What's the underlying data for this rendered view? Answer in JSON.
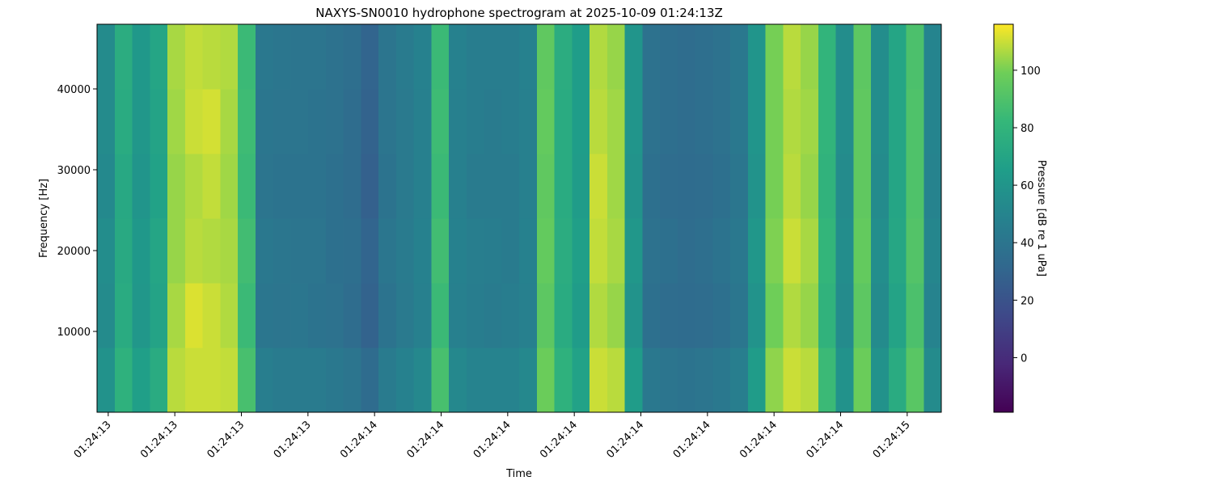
{
  "chart_data": {
    "type": "heatmap",
    "title": "NAXYS-SN0010 hydrophone spectrogram at 2025-10-09 01:24:13Z",
    "x_label": "Time",
    "y_label": "Frequency [Hz]",
    "colorbar_label": "Pressure [dB re 1 uPa]",
    "colormap": "viridis",
    "xlim": [
      12.979,
      14.564
    ],
    "xticks": [
      {
        "value": 13.0,
        "label": "01:24:13"
      },
      {
        "value": 13.125,
        "label": "01:24:13"
      },
      {
        "value": 13.25,
        "label": "01:24:13"
      },
      {
        "value": 13.375,
        "label": "01:24:13"
      },
      {
        "value": 13.5,
        "label": "01:24:14"
      },
      {
        "value": 13.625,
        "label": "01:24:14"
      },
      {
        "value": 13.75,
        "label": "01:24:14"
      },
      {
        "value": 13.875,
        "label": "01:24:14"
      },
      {
        "value": 14.0,
        "label": "01:24:14"
      },
      {
        "value": 14.125,
        "label": "01:24:14"
      },
      {
        "value": 14.25,
        "label": "01:24:14"
      },
      {
        "value": 14.375,
        "label": "01:24:14"
      },
      {
        "value": 14.5,
        "label": "01:24:15"
      }
    ],
    "ylim": [
      0,
      48000
    ],
    "yticks": [
      10000,
      20000,
      30000,
      40000
    ],
    "clim": [
      -19,
      116
    ],
    "cticks": [
      0,
      20,
      40,
      60,
      80,
      100
    ],
    "z": [
      [
        58,
        78,
        66,
        74,
        108,
        110,
        110,
        109,
        88,
        46,
        44,
        44,
        44,
        42,
        40,
        34,
        44,
        48,
        52,
        88,
        52,
        49,
        49,
        49,
        52,
        98,
        78,
        68,
        110,
        108,
        64,
        42,
        40,
        39,
        40,
        42,
        46,
        64,
        103,
        110,
        108,
        84,
        58,
        98,
        58,
        74,
        93,
        54
      ],
      [
        54,
        74,
        61,
        69,
        106,
        112,
        110,
        107,
        84,
        41,
        40,
        41,
        39,
        38,
        35,
        29,
        39,
        43,
        47,
        84,
        47,
        45,
        44,
        45,
        47,
        94,
        74,
        64,
        107,
        104,
        59,
        37,
        35,
        34,
        35,
        37,
        41,
        59,
        99,
        107,
        104,
        79,
        54,
        94,
        54,
        69,
        89,
        49
      ],
      [
        55,
        73,
        62,
        70,
        104,
        108,
        107,
        106,
        86,
        42,
        41,
        40,
        40,
        37,
        36,
        30,
        41,
        44,
        48,
        86,
        48,
        46,
        45,
        44,
        48,
        96,
        75,
        66,
        109,
        106,
        61,
        38,
        37,
        35,
        36,
        39,
        42,
        61,
        101,
        110,
        106,
        81,
        55,
        96,
        56,
        71,
        91,
        51
      ],
      [
        53,
        72,
        60,
        68,
        104,
        107,
        109,
        105,
        84,
        40,
        39,
        39,
        39,
        37,
        35,
        28,
        39,
        43,
        47,
        84,
        47,
        44,
        44,
        44,
        47,
        95,
        74,
        64,
        110,
        105,
        59,
        37,
        35,
        34,
        35,
        37,
        41,
        59,
        100,
        108,
        104,
        79,
        54,
        95,
        54,
        70,
        90,
        49
      ],
      [
        54,
        74,
        61,
        69,
        105,
        110,
        111,
        106,
        85,
        41,
        40,
        40,
        39,
        38,
        35,
        29,
        40,
        43,
        47,
        85,
        47,
        45,
        44,
        45,
        47,
        96,
        74,
        65,
        108,
        105,
        60,
        38,
        36,
        35,
        36,
        38,
        42,
        60,
        100,
        107,
        105,
        80,
        55,
        95,
        55,
        70,
        90,
        50
      ],
      [
        54,
        75,
        62,
        70,
        106,
        109,
        108,
        107,
        84,
        42,
        41,
        40,
        40,
        38,
        36,
        30,
        40,
        44,
        48,
        84,
        48,
        45,
        45,
        45,
        48,
        95,
        75,
        65,
        107,
        104,
        60,
        38,
        36,
        35,
        36,
        38,
        42,
        60,
        100,
        108,
        104,
        80,
        55,
        94,
        55,
        70,
        89,
        50
      ]
    ]
  }
}
